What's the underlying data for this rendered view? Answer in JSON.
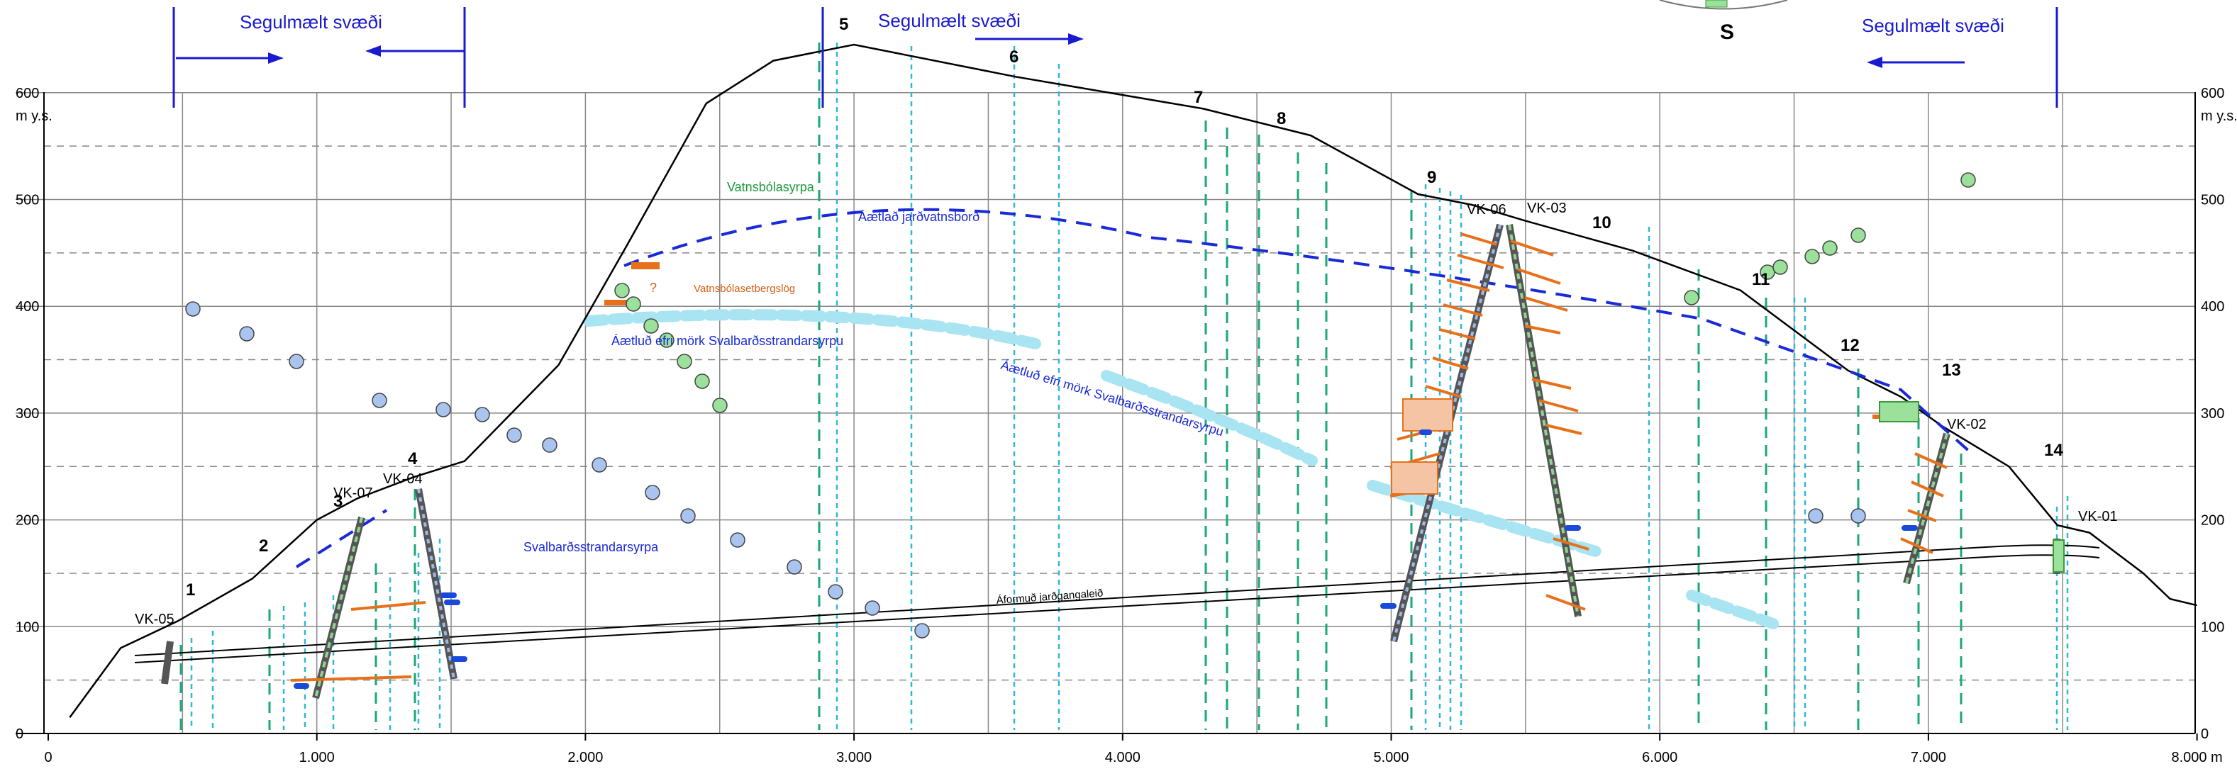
{
  "y_axis": {
    "unit": "m y.s.",
    "ticks": [
      0,
      100,
      200,
      300,
      400,
      500,
      600
    ],
    "tick_labels": [
      "0",
      "100",
      "200",
      "300",
      "400",
      "500",
      "600"
    ]
  },
  "x_axis": {
    "ticks": [
      0,
      1000,
      2000,
      3000,
      4000,
      5000,
      6000,
      7000,
      8000
    ],
    "tick_labels": [
      "0",
      "1.000",
      "2.000",
      "3.000",
      "4.000",
      "5.000",
      "6.000",
      "7.000",
      "8.000 m"
    ]
  },
  "magnetic_zones": {
    "label": "Segulmælt svæði",
    "spans": [
      [
        480,
        1560
      ],
      [
        2900,
        3900
      ],
      [
        6300,
        7500
      ]
    ]
  },
  "compass_label": "S",
  "section_numbers": [
    "1",
    "2",
    "3",
    "4",
    "5",
    "6",
    "7",
    "8",
    "9",
    "10",
    "11",
    "12",
    "13",
    "14"
  ],
  "boreholes": [
    "VK-05",
    "VK-07",
    "VK-04",
    "VK-06",
    "VK-03",
    "VK-02",
    "VK-01"
  ],
  "labels": {
    "vatnsbolasyrpa": "Vatnsbólasyrpa",
    "water_table": "Áætlað jarðvatnsborð",
    "sediments": "Vatnsbólasetbergslög",
    "question": "?",
    "upper_boundary_1": "Áætluð efri mörk Svalbarðsstrandarsyrpu",
    "upper_boundary_2": "Áætluð efri mörk Svalbarðsstrandarsyrpu",
    "svalbard_formation": "Svalbarðsstrandarsyrpa",
    "tunnel": "Áformuð jarðgangaleið"
  },
  "terrain_profile": [
    [
      80,
      15
    ],
    [
      270,
      80
    ],
    [
      480,
      105
    ],
    [
      760,
      145
    ],
    [
      1000,
      200
    ],
    [
      1150,
      220
    ],
    [
      1360,
      240
    ],
    [
      1550,
      255
    ],
    [
      1900,
      345
    ],
    [
      2150,
      455
    ],
    [
      2450,
      590
    ],
    [
      2700,
      630
    ],
    [
      3000,
      645
    ],
    [
      3600,
      615
    ],
    [
      4300,
      585
    ],
    [
      4700,
      560
    ],
    [
      5100,
      505
    ],
    [
      5300,
      495
    ],
    [
      5500,
      480
    ],
    [
      5900,
      452
    ],
    [
      6300,
      415
    ],
    [
      6700,
      340
    ],
    [
      6900,
      315
    ],
    [
      7050,
      288
    ],
    [
      7300,
      250
    ],
    [
      7480,
      195
    ],
    [
      7600,
      188
    ],
    [
      7800,
      150
    ],
    [
      7900,
      126
    ],
    [
      8000,
      120
    ]
  ],
  "colors": {
    "terrain": "#000000",
    "water_table": "#1a2ad8",
    "boundary": "#a8e4f2",
    "alteration": "#e8701a",
    "magnetic_blue": "#1a1ad0",
    "green_markers": "#9be09b",
    "blue_markers": "#a9c4ee"
  }
}
